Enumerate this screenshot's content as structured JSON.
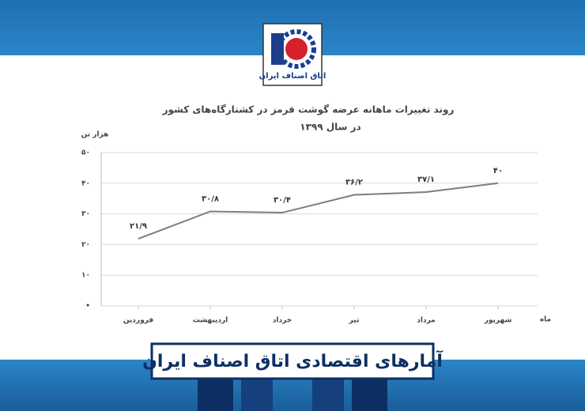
{
  "header": {
    "logo_text": "اتاق اصناف ایران"
  },
  "chart_data": {
    "type": "line",
    "title": "روند تغییرات ماهانه عرضه گوشت قرمز در کشتارگاه‌های کشور",
    "subtitle": "در سال ۱۳۹۹",
    "y_label": "هزار تن",
    "x_label": "ماه",
    "categories": [
      "فروردین",
      "اردیبهشت",
      "خرداد",
      "تیر",
      "مرداد",
      "شهریور"
    ],
    "values": [
      21.9,
      30.8,
      30.4,
      36.2,
      37.1,
      40
    ],
    "value_labels": [
      "۲۱/۹",
      "۳۰/۸",
      "۳۰/۴",
      "۳۶/۲",
      "۳۷/۱",
      "۴۰"
    ],
    "color": "#857a7c",
    "ylim": [
      0,
      50
    ],
    "yticks": [
      {
        "value": 0,
        "label": "•"
      },
      {
        "value": 10,
        "label": "۱۰"
      },
      {
        "value": 20,
        "label": "۲۰"
      },
      {
        "value": 30,
        "label": "۳۰"
      },
      {
        "value": 40,
        "label": "۴۰"
      },
      {
        "value": 50,
        "label": "۵۰"
      }
    ],
    "grid": true
  },
  "footer": {
    "banner": "آمارهای اقتصادی اتاق اصناف ایران"
  }
}
